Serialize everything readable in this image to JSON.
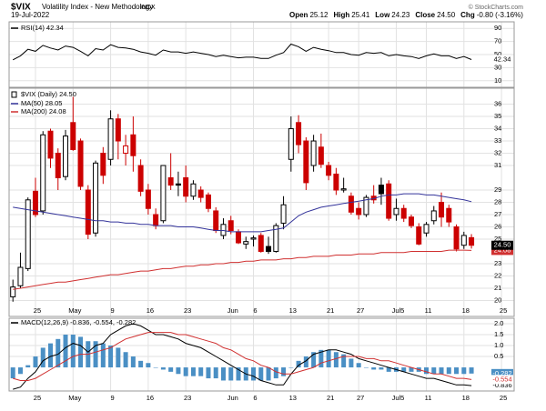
{
  "header": {
    "symbol": "$VIX",
    "name": "Volatility Index - New Methodology",
    "exchange": "INDX",
    "date": "19-Jul-2022",
    "quote": [
      {
        "label": "Open",
        "value": "25.12"
      },
      {
        "label": "High",
        "value": "25.41"
      },
      {
        "label": "Low",
        "value": "24.23"
      },
      {
        "label": "Close",
        "value": "24.50"
      },
      {
        "label": "Chg",
        "value": "-0.80 (-3.16%)"
      }
    ],
    "credit": "© StockCharts.com"
  },
  "chart_data": [
    {
      "type": "line",
      "name": "RSI(14) 42.34",
      "color": "#000000",
      "tag": "42.34",
      "ylim": [
        0,
        100
      ],
      "yticks": [
        10,
        30,
        50,
        70,
        90
      ],
      "grid": true,
      "values": [
        42,
        48,
        58,
        55,
        64,
        60,
        57,
        63,
        61,
        55,
        48,
        59,
        57,
        65,
        61,
        60,
        58,
        54,
        52,
        49,
        57,
        54,
        54,
        52,
        54,
        52,
        50,
        47,
        49,
        47,
        45,
        46,
        46,
        44,
        44,
        49,
        53,
        66,
        62,
        55,
        61,
        58,
        56,
        53,
        53,
        50,
        49,
        53,
        52,
        53,
        48,
        50,
        48,
        47,
        44,
        48,
        51,
        48,
        48,
        44,
        47,
        42.34,
        null,
        null,
        null,
        null
      ]
    },
    {
      "type": "candlestick",
      "name": "$VIX (Daily) 24.50",
      "tag": "24.50",
      "colors": {
        "up": "#000000",
        "down": "#cc0000"
      },
      "ylim": [
        18.7,
        37.3
      ],
      "yticks": [
        20,
        21,
        22,
        23,
        25,
        26,
        27,
        28,
        29,
        31,
        32,
        33,
        34,
        35,
        36
      ],
      "grid": true,
      "categories": [
        null,
        null,
        null,
        "25",
        null,
        null,
        null,
        null,
        "May",
        null,
        null,
        null,
        null,
        "9",
        null,
        null,
        null,
        null,
        "16",
        null,
        null,
        null,
        null,
        "23",
        null,
        null,
        null,
        null,
        null,
        "Jun",
        null,
        null,
        "6",
        null,
        null,
        null,
        null,
        "13",
        null,
        null,
        null,
        null,
        "21",
        null,
        null,
        null,
        "27",
        null,
        null,
        null,
        null,
        "Jul5",
        null,
        null,
        null,
        "11",
        null,
        null,
        null,
        null,
        "18",
        null,
        null,
        null,
        null,
        "25"
      ],
      "open": [
        20.3,
        21.2,
        22.6,
        28.9,
        27.3,
        33.8,
        32.0,
        30.1,
        34.5,
        33.0,
        29.0,
        25.5,
        32.0,
        31.5,
        34.8,
        32.0,
        33.5,
        31.0,
        29.0,
        27.0,
        26.5,
        30.0,
        29.5,
        30.0,
        28.5,
        29.0,
        28.6,
        27.3,
        25.3,
        26.5,
        25.6,
        24.6,
        25.0,
        25.3,
        24.4,
        24.0,
        26.3,
        31.5,
        34.5,
        33.0,
        31.0,
        32.5,
        31.0,
        30.3,
        29.0,
        28.5,
        27.5,
        27.0,
        28.5,
        29.4,
        29.5,
        27.0,
        27.5,
        26.8,
        26.0,
        25.5,
        26.5,
        28.0,
        27.5,
        26.0,
        24.5,
        25.12,
        null,
        null,
        null,
        null
      ],
      "high": [
        21.7,
        23.9,
        28.4,
        30.0,
        33.8,
        34.0,
        32.4,
        33.9,
        36.6,
        33.2,
        29.4,
        31.4,
        32.5,
        35.5,
        35.2,
        33.5,
        35.0,
        31.5,
        29.5,
        27.5,
        31.0,
        32.0,
        30.5,
        31.0,
        29.8,
        29.3,
        28.8,
        27.6,
        26.7,
        26.9,
        25.8,
        25.2,
        25.3,
        25.5,
        25.2,
        26.3,
        28.5,
        35.0,
        35.1,
        33.3,
        33.5,
        33.6,
        31.3,
        30.8,
        30.0,
        28.8,
        28.0,
        28.6,
        29.4,
        30.0,
        29.8,
        28.3,
        27.8,
        27.0,
        26.3,
        26.4,
        27.7,
        28.8,
        27.8,
        26.2,
        25.6,
        25.41,
        null,
        null,
        null,
        null
      ],
      "low": [
        19.9,
        21.0,
        22.4,
        26.8,
        27.0,
        30.8,
        29.0,
        29.8,
        32.2,
        29.0,
        25.0,
        25.2,
        29.5,
        31.0,
        31.5,
        31.0,
        30.5,
        28.5,
        27.0,
        25.8,
        26.3,
        29.0,
        28.5,
        28.0,
        28.2,
        28.0,
        27.2,
        25.5,
        25.0,
        25.4,
        24.6,
        24.2,
        24.4,
        23.9,
        23.8,
        23.9,
        25.8,
        30.5,
        32.0,
        29.0,
        30.5,
        30.8,
        29.8,
        28.6,
        28.8,
        27.0,
        26.6,
        26.8,
        27.9,
        27.8,
        26.5,
        26.5,
        26.4,
        25.9,
        24.5,
        25.2,
        26.2,
        26.0,
        26.0,
        24.0,
        24.2,
        24.23,
        null,
        null,
        null,
        null
      ],
      "close": [
        21.1,
        22.7,
        28.2,
        27.0,
        33.5,
        31.6,
        30.0,
        33.4,
        32.3,
        29.3,
        25.4,
        31.2,
        30.2,
        34.8,
        33.0,
        32.6,
        31.8,
        28.9,
        27.5,
        26.1,
        31.0,
        29.4,
        29.4,
        28.5,
        29.5,
        28.4,
        27.5,
        25.7,
        26.2,
        25.7,
        24.7,
        24.8,
        25.1,
        24.0,
        24.0,
        26.1,
        27.8,
        34.0,
        32.7,
        29.6,
        33.0,
        31.1,
        30.2,
        29.0,
        29.1,
        27.2,
        27.0,
        28.4,
        28.2,
        28.7,
        26.7,
        27.5,
        26.7,
        26.1,
        24.6,
        26.2,
        27.3,
        26.8,
        26.4,
        24.2,
        25.3,
        24.5,
        null,
        null,
        null,
        null
      ],
      "overlays": [
        {
          "name": "MA(50) 28.05",
          "color": "#33339a",
          "values": [
            27.6,
            27.5,
            27.4,
            27.3,
            27.2,
            27.1,
            27.0,
            26.9,
            26.8,
            26.7,
            26.6,
            26.5,
            26.5,
            26.4,
            26.4,
            26.3,
            26.3,
            26.2,
            26.2,
            26.1,
            26.1,
            26.1,
            26.0,
            26.0,
            26.0,
            25.9,
            25.8,
            25.7,
            25.7,
            25.6,
            25.6,
            25.6,
            25.6,
            25.6,
            25.7,
            25.8,
            25.9,
            26.4,
            26.9,
            27.2,
            27.4,
            27.6,
            27.7,
            27.8,
            27.9,
            28.0,
            28.1,
            28.2,
            28.3,
            28.5,
            28.6,
            28.6,
            28.7,
            28.7,
            28.7,
            28.6,
            28.6,
            28.5,
            28.4,
            28.3,
            28.2,
            28.05,
            null,
            null,
            null,
            null
          ]
        },
        {
          "name": "MA(200) 24.08",
          "color": "#d03030",
          "tag": "24.08",
          "values": [
            20.9,
            21.0,
            21.1,
            21.2,
            21.3,
            21.4,
            21.5,
            21.5,
            21.6,
            21.7,
            21.8,
            21.9,
            22.0,
            22.1,
            22.1,
            22.2,
            22.3,
            22.4,
            22.4,
            22.5,
            22.6,
            22.6,
            22.7,
            22.8,
            22.8,
            22.9,
            22.9,
            23.0,
            23.0,
            23.1,
            23.1,
            23.2,
            23.2,
            23.3,
            23.3,
            23.3,
            23.4,
            23.4,
            23.5,
            23.5,
            23.6,
            23.6,
            23.6,
            23.7,
            23.7,
            23.7,
            23.8,
            23.8,
            23.8,
            23.9,
            23.9,
            23.9,
            23.9,
            24.0,
            24.0,
            24.0,
            24.0,
            24.0,
            24.1,
            24.1,
            24.1,
            24.08,
            null,
            null,
            null,
            null
          ]
        }
      ]
    },
    {
      "type": "macd",
      "name": "MACD(12,26,9) -0.836, -0.554, -0.282",
      "ylim": [
        -1.08,
        2.25
      ],
      "yticks": [
        {
          "value": 2,
          "label": "2.0"
        },
        {
          "value": 1.5,
          "label": "1.5"
        },
        {
          "value": 1,
          "label": "1.0"
        },
        {
          "value": 0.5,
          "label": "0.5"
        }
      ],
      "grid": true,
      "categories": [
        null,
        null,
        null,
        "25",
        null,
        null,
        null,
        null,
        "May",
        null,
        null,
        null,
        null,
        "9",
        null,
        null,
        null,
        null,
        "16",
        null,
        null,
        null,
        null,
        "23",
        null,
        null,
        null,
        null,
        null,
        "Jun",
        null,
        null,
        "6",
        null,
        null,
        null,
        null,
        "13",
        null,
        null,
        null,
        null,
        "21",
        null,
        null,
        null,
        "27",
        null,
        null,
        null,
        null,
        "Jul5",
        null,
        null,
        null,
        "11",
        null,
        null,
        null,
        null,
        "18",
        null,
        null,
        null,
        null,
        "25"
      ],
      "histogram": {
        "color": "#4a8fc4",
        "tag": "-0.282",
        "values": [
          -0.5,
          -0.3,
          0.1,
          0.5,
          0.9,
          1.1,
          1.3,
          1.5,
          1.5,
          1.4,
          1.2,
          1.2,
          1.1,
          1.0,
          0.9,
          0.7,
          0.5,
          0.3,
          0.2,
          0.0,
          -0.1,
          -0.2,
          -0.3,
          -0.4,
          -0.4,
          -0.4,
          -0.5,
          -0.5,
          -0.6,
          -0.6,
          -0.6,
          -0.6,
          -0.6,
          -0.6,
          -0.6,
          -0.5,
          -0.4,
          0.0,
          0.3,
          0.5,
          0.7,
          0.8,
          0.8,
          0.7,
          0.6,
          0.4,
          0.2,
          0.0,
          -0.1,
          -0.1,
          -0.2,
          -0.2,
          -0.2,
          -0.2,
          -0.2,
          -0.3,
          -0.3,
          -0.3,
          -0.3,
          -0.3,
          -0.3,
          -0.282,
          null,
          null,
          null,
          null
        ]
      },
      "series": [
        {
          "color": "#000000",
          "tag": "-0.836",
          "values": [
            -1.0,
            -0.9,
            -0.5,
            -0.2,
            0.3,
            0.5,
            0.6,
            0.9,
            1.1,
            1.0,
            0.7,
            1.0,
            1.1,
            1.5,
            1.7,
            1.9,
            2.0,
            1.9,
            1.7,
            1.5,
            1.5,
            1.4,
            1.3,
            1.1,
            1.0,
            0.9,
            0.7,
            0.5,
            0.3,
            0.1,
            -0.1,
            -0.3,
            -0.4,
            -0.6,
            -0.7,
            -0.8,
            -0.8,
            -0.3,
            0.1,
            0.3,
            0.6,
            0.7,
            0.8,
            0.8,
            0.7,
            0.6,
            0.4,
            0.3,
            0.2,
            0.1,
            0.0,
            -0.1,
            -0.2,
            -0.3,
            -0.4,
            -0.5,
            -0.5,
            -0.6,
            -0.7,
            -0.8,
            -0.8,
            -0.836,
            null,
            null,
            null,
            null
          ]
        },
        {
          "color": "#d03030",
          "tag": "-0.554",
          "values": [
            -0.5,
            -0.6,
            -0.6,
            -0.5,
            -0.3,
            -0.1,
            0.1,
            0.3,
            0.5,
            0.6,
            0.6,
            0.7,
            0.8,
            0.9,
            1.1,
            1.3,
            1.4,
            1.5,
            1.6,
            1.6,
            1.6,
            1.6,
            1.5,
            1.5,
            1.4,
            1.3,
            1.2,
            1.1,
            0.9,
            0.8,
            0.6,
            0.4,
            0.3,
            0.1,
            0.0,
            -0.2,
            -0.3,
            -0.3,
            -0.2,
            -0.1,
            0.0,
            0.2,
            0.3,
            0.4,
            0.5,
            0.5,
            0.5,
            0.4,
            0.4,
            0.3,
            0.3,
            0.2,
            0.1,
            0.0,
            -0.1,
            -0.2,
            -0.3,
            -0.3,
            -0.4,
            -0.5,
            -0.5,
            -0.554,
            null,
            null,
            null,
            null
          ]
        }
      ]
    }
  ]
}
